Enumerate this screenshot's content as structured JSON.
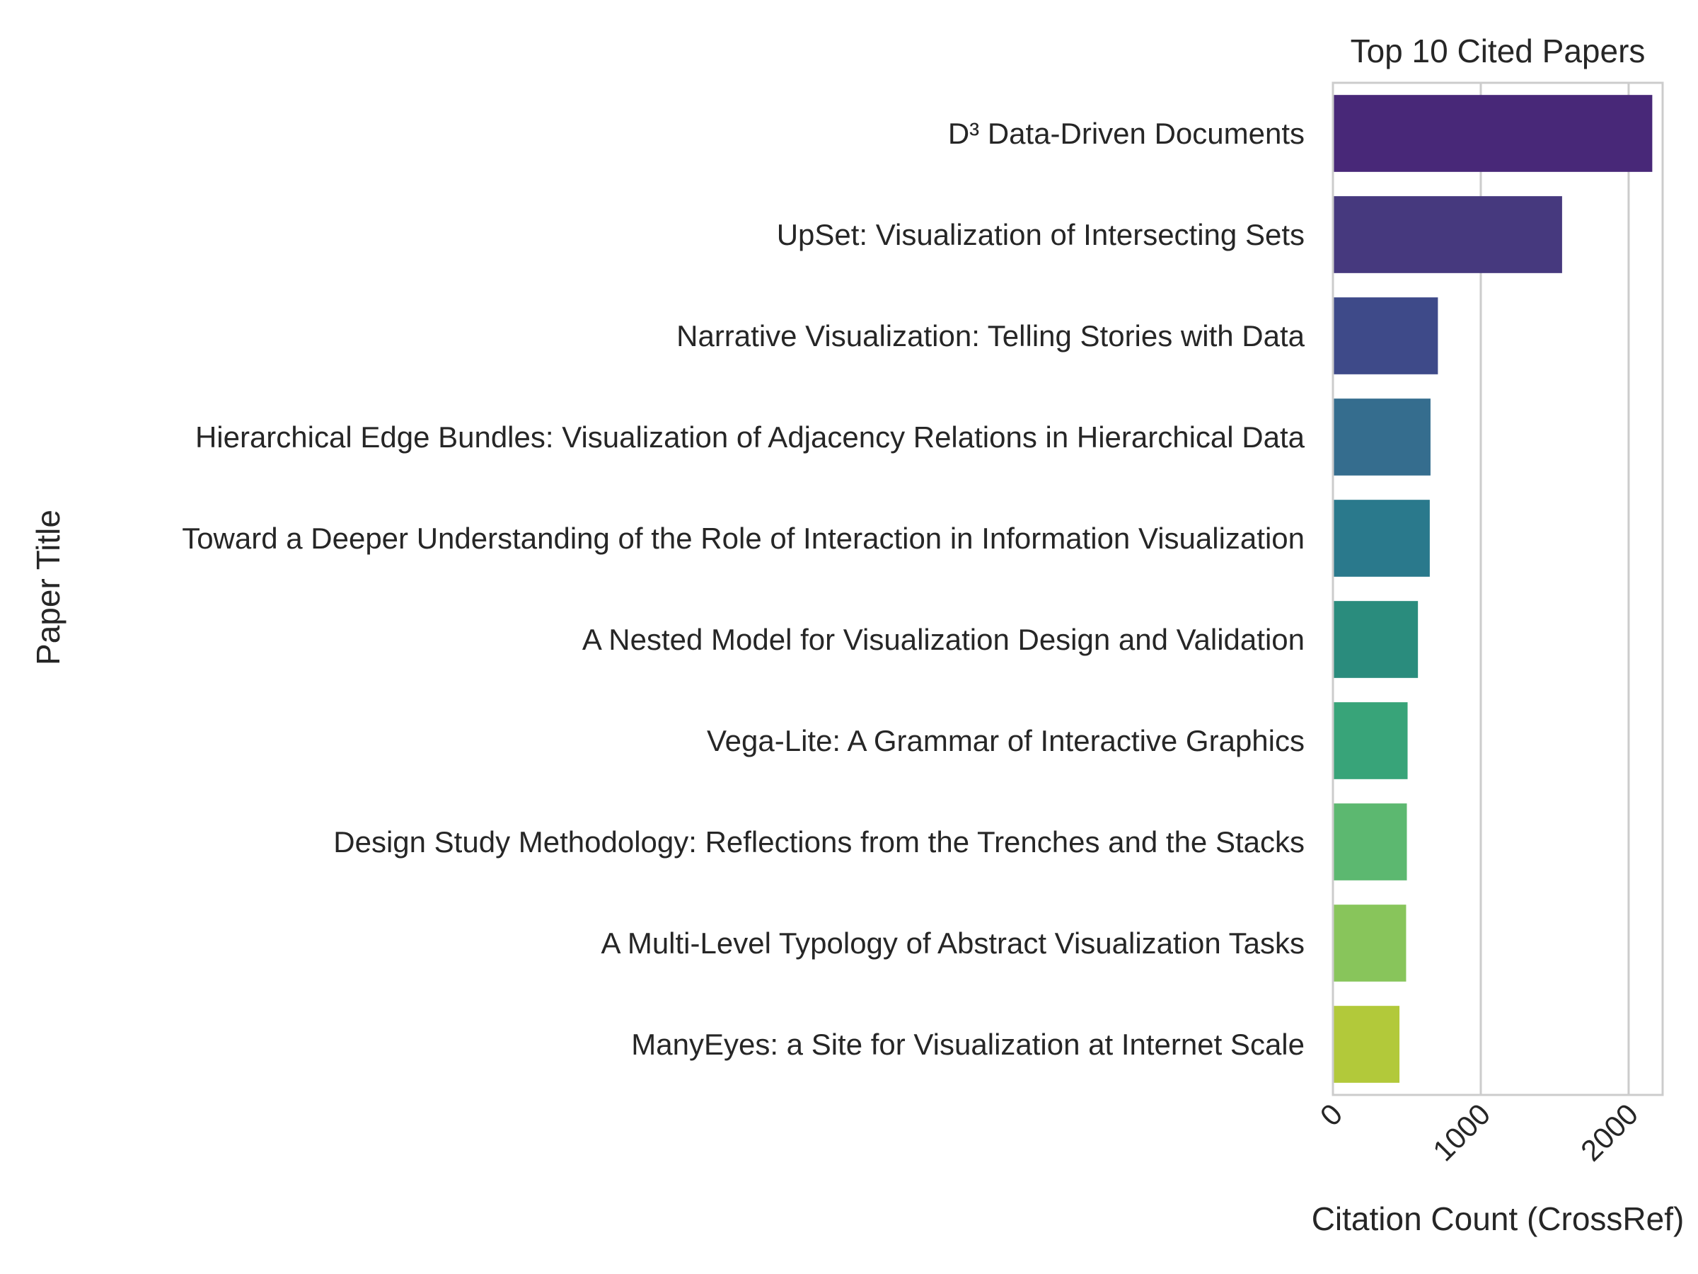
{
  "chart_data": {
    "type": "bar",
    "orientation": "horizontal",
    "title": "Top 10 Cited Papers",
    "xlabel": "Citation Count (CrossRef)",
    "ylabel": "Paper Title",
    "xlim": [
      0,
      2230
    ],
    "xticks": [
      "0",
      "1000",
      "2000"
    ],
    "grid": "vertical",
    "categories": [
      "D³ Data-Driven Documents",
      "UpSet: Visualization of Intersecting Sets",
      "Narrative Visualization: Telling Stories with Data",
      "Hierarchical Edge Bundles: Visualization of Adjacency Relations in Hierarchical Data",
      "Toward a Deeper Understanding of the Role of Interaction in Information Visualization",
      "A Nested Model for Visualization Design and Validation",
      "Vega-Lite: A Grammar of Interactive Graphics",
      "Design Study Methodology: Reflections from the Trenches and the Stacks",
      "A Multi-Level Typology of Abstract Visualization Tasks",
      "ManyEyes: a Site for Visualization at Internet Scale"
    ],
    "values": [
      2160,
      1550,
      710,
      660,
      655,
      575,
      505,
      500,
      495,
      450
    ],
    "colors": [
      "#482878",
      "#46397e",
      "#3e4a89",
      "#356d8e",
      "#2a798c",
      "#2a8c7d",
      "#38a479",
      "#5cb870",
      "#88c55b",
      "#b2c93a"
    ]
  }
}
